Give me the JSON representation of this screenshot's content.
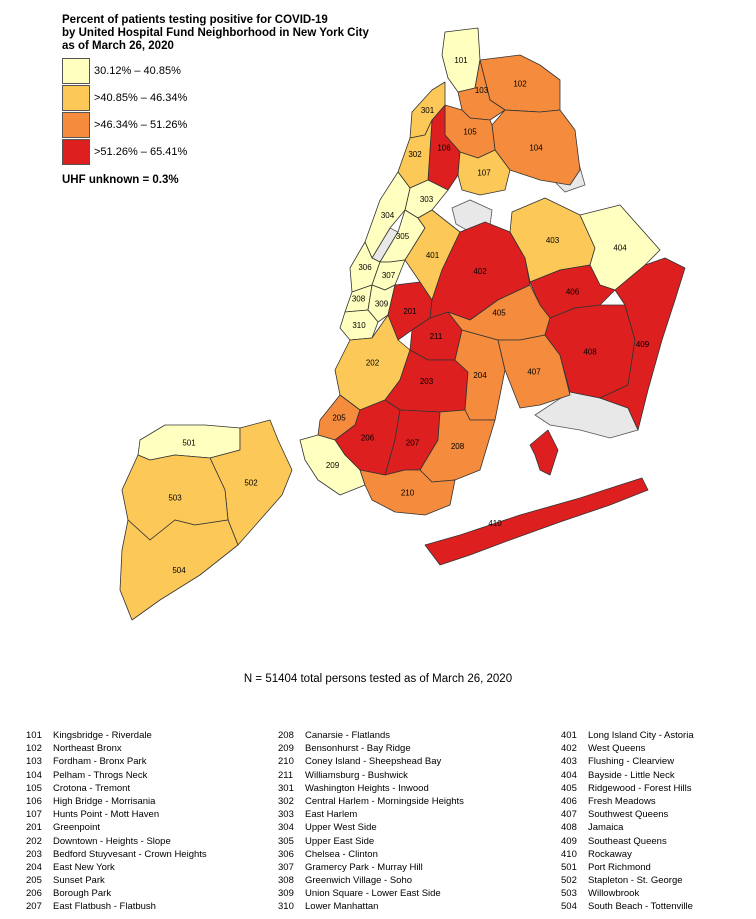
{
  "title": {
    "line1": "Percent of patients testing positive for COVID-19",
    "line2": "by United Hospital Fund Neighborhood in New York City",
    "line3": "as of March 26, 2020"
  },
  "legend": [
    {
      "label": "30.12% – 40.85%",
      "color": "#ffffc0"
    },
    {
      "label": ">40.85% – 46.34%",
      "color": "#fcc959"
    },
    {
      "label": ">46.34% – 51.26%",
      "color": "#f58b3c"
    },
    {
      "label": ">51.26% – 65.41%",
      "color": "#de1f1f"
    }
  ],
  "unknown_note": "UHF unknown = 0.3%",
  "colors": {
    "unknown_area": "#e8e8e8",
    "border": "#333333"
  },
  "regions": [
    {
      "code": "101",
      "cls": 0
    },
    {
      "code": "102",
      "cls": 2
    },
    {
      "code": "103",
      "cls": 2
    },
    {
      "code": "104",
      "cls": 2
    },
    {
      "code": "105",
      "cls": 2
    },
    {
      "code": "106",
      "cls": 3
    },
    {
      "code": "107",
      "cls": 1
    },
    {
      "code": "201",
      "cls": 3
    },
    {
      "code": "202",
      "cls": 1
    },
    {
      "code": "203",
      "cls": 3
    },
    {
      "code": "204",
      "cls": 2
    },
    {
      "code": "205",
      "cls": 2
    },
    {
      "code": "206",
      "cls": 3
    },
    {
      "code": "207",
      "cls": 3
    },
    {
      "code": "208",
      "cls": 2
    },
    {
      "code": "209",
      "cls": 0
    },
    {
      "code": "210",
      "cls": 2
    },
    {
      "code": "211",
      "cls": 3
    },
    {
      "code": "301",
      "cls": 1
    },
    {
      "code": "302",
      "cls": 1
    },
    {
      "code": "303",
      "cls": 0
    },
    {
      "code": "304",
      "cls": 0
    },
    {
      "code": "305",
      "cls": 0
    },
    {
      "code": "306",
      "cls": 0
    },
    {
      "code": "307",
      "cls": 0
    },
    {
      "code": "308",
      "cls": 0
    },
    {
      "code": "309",
      "cls": 0
    },
    {
      "code": "310",
      "cls": 0
    },
    {
      "code": "401",
      "cls": 1
    },
    {
      "code": "402",
      "cls": 3
    },
    {
      "code": "403",
      "cls": 1
    },
    {
      "code": "404",
      "cls": 0
    },
    {
      "code": "405",
      "cls": 2
    },
    {
      "code": "406",
      "cls": 3
    },
    {
      "code": "407",
      "cls": 2
    },
    {
      "code": "408",
      "cls": 3
    },
    {
      "code": "409",
      "cls": 3
    },
    {
      "code": "410",
      "cls": 3
    },
    {
      "code": "501",
      "cls": 0
    },
    {
      "code": "502",
      "cls": 1
    },
    {
      "code": "503",
      "cls": 1
    },
    {
      "code": "504",
      "cls": 1
    }
  ],
  "footnote": "N = 51404 total persons tested as of March 26, 2020",
  "key": [
    [
      [
        "101",
        "Kingsbridge - Riverdale"
      ],
      [
        "102",
        "Northeast Bronx"
      ],
      [
        "103",
        "Fordham - Bronx Park"
      ],
      [
        "104",
        "Pelham - Throgs Neck"
      ],
      [
        "105",
        "Crotona - Tremont"
      ],
      [
        "106",
        "High Bridge - Morrisania"
      ],
      [
        "107",
        "Hunts Point - Mott Haven"
      ],
      [
        "201",
        "Greenpoint"
      ],
      [
        "202",
        "Downtown  - Heights - Slope"
      ],
      [
        "203",
        "Bedford Stuyvesant - Crown Heights"
      ],
      [
        "204",
        "East New York"
      ],
      [
        "205",
        "Sunset Park"
      ],
      [
        "206",
        "Borough Park"
      ],
      [
        "207",
        "East Flatbush - Flatbush"
      ]
    ],
    [
      [
        "208",
        "Canarsie - Flatlands"
      ],
      [
        "209",
        "Bensonhurst - Bay Ridge"
      ],
      [
        "210",
        "Coney Island - Sheepshead Bay"
      ],
      [
        "211",
        "Williamsburg - Bushwick"
      ],
      [
        "301",
        "Washington Heights - Inwood"
      ],
      [
        "302",
        "Central Harlem - Morningside Heights"
      ],
      [
        "303",
        "East Harlem"
      ],
      [
        "304",
        "Upper West Side"
      ],
      [
        "305",
        "Upper East Side"
      ],
      [
        "306",
        "Chelsea - Clinton"
      ],
      [
        "307",
        "Gramercy Park -  Murray Hill"
      ],
      [
        "308",
        "Greenwich Village - Soho"
      ],
      [
        "309",
        "Union Square - Lower East Side"
      ],
      [
        "310",
        "Lower Manhattan"
      ]
    ],
    [
      [
        "401",
        "Long Island City - Astoria"
      ],
      [
        "402",
        "West Queens"
      ],
      [
        "403",
        "Flushing - Clearview"
      ],
      [
        "404",
        "Bayside - Little Neck"
      ],
      [
        "405",
        "Ridgewood - Forest Hills"
      ],
      [
        "406",
        "Fresh Meadows"
      ],
      [
        "407",
        "Southwest Queens"
      ],
      [
        "408",
        "Jamaica"
      ],
      [
        "409",
        "Southeast Queens"
      ],
      [
        "410",
        "Rockaway"
      ],
      [
        "501",
        "Port  Richmond"
      ],
      [
        "502",
        "Stapleton - St. George"
      ],
      [
        "503",
        "Willowbrook"
      ],
      [
        "504",
        "South Beach - Tottenville"
      ]
    ]
  ]
}
